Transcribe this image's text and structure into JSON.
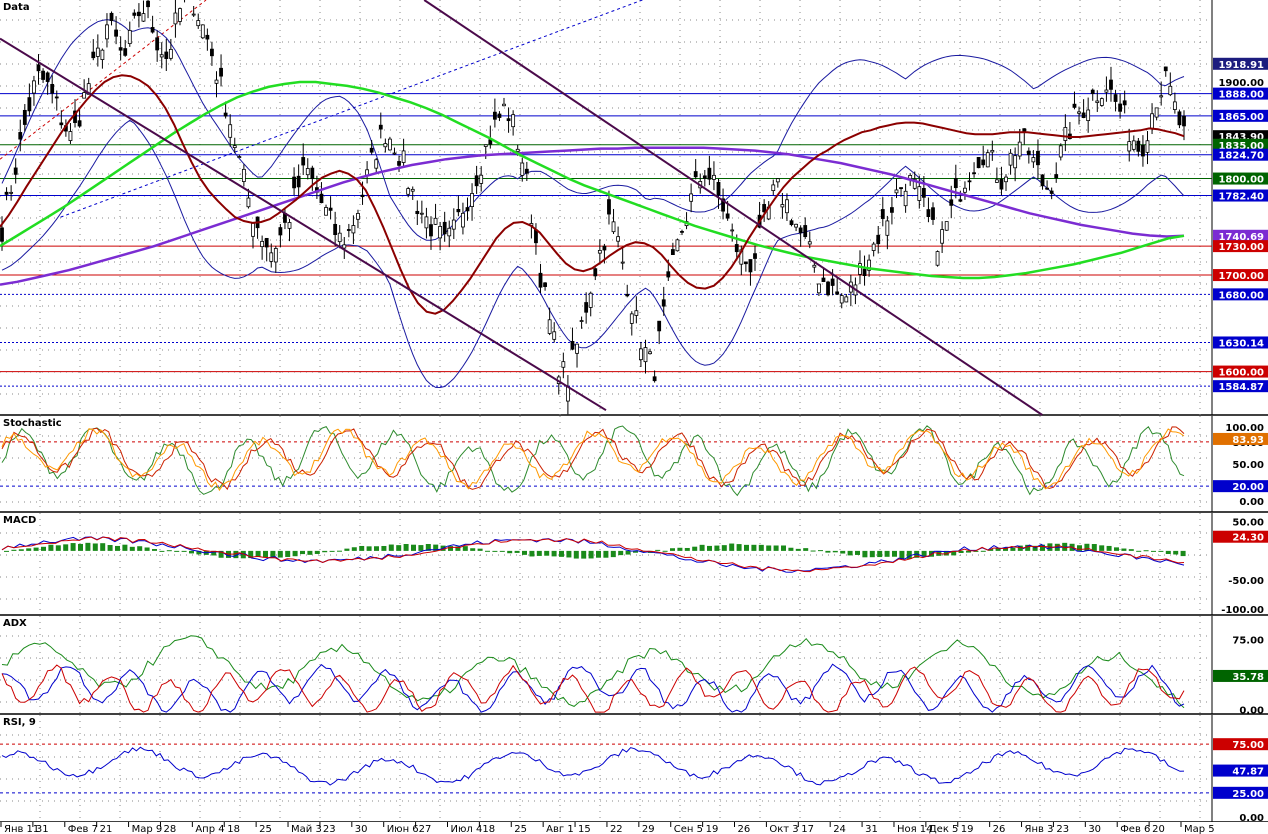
{
  "chart_data": [
    {
      "type": "candlestick",
      "panel": "main",
      "label": "Data",
      "scale_ticks": [
        {
          "label": "1918.91",
          "value": 1918.91,
          "kind": "price",
          "color": "#1c1c7e"
        },
        {
          "label": "1900.00",
          "value": 1900.0,
          "kind": "axis",
          "color": "#000000"
        },
        {
          "label": "1888.00",
          "value": 1888.0,
          "kind": "level",
          "color": "#0000cc"
        },
        {
          "label": "1865.00",
          "value": 1865.0,
          "kind": "level",
          "color": "#0000cc"
        },
        {
          "label": "1843.90",
          "value": 1843.9,
          "kind": "price",
          "color": "#000000"
        },
        {
          "label": "1835.00",
          "value": 1835.0,
          "kind": "level",
          "color": "#006400"
        },
        {
          "label": "1824.70",
          "value": 1824.7,
          "kind": "price",
          "color": "#0000cc"
        },
        {
          "label": "1800.00",
          "value": 1800.0,
          "kind": "level",
          "color": "#006400"
        },
        {
          "label": "1782.40",
          "value": 1782.4,
          "kind": "price",
          "color": "#0000cc"
        },
        {
          "label": "1740.69",
          "value": 1740.69,
          "kind": "price",
          "color": "#7b2cd2"
        },
        {
          "label": "1730.00",
          "value": 1730.0,
          "kind": "level",
          "color": "#cc0000"
        },
        {
          "label": "1700.00",
          "value": 1700.0,
          "kind": "level",
          "color": "#cc0000"
        },
        {
          "label": "1680.00",
          "value": 1680.0,
          "kind": "level",
          "color": "#0000cc"
        },
        {
          "label": "1630.14",
          "value": 1630.14,
          "kind": "price",
          "color": "#0000cc"
        },
        {
          "label": "1600.00",
          "value": 1600.0,
          "kind": "level",
          "color": "#cc0000"
        },
        {
          "label": "1584.87",
          "value": 1584.87,
          "kind": "price",
          "color": "#0000cc"
        }
      ],
      "horizontal_levels": [
        {
          "value": 1888,
          "color": "#0000cc"
        },
        {
          "value": 1865,
          "color": "#0000cc"
        },
        {
          "value": 1835,
          "color": "#006400"
        },
        {
          "value": 1824.7,
          "color": "#0000cc"
        },
        {
          "value": 1800,
          "color": "#006400"
        },
        {
          "value": 1782.4,
          "color": "#0000cc"
        },
        {
          "value": 1730,
          "color": "#cc0000"
        },
        {
          "value": 1700,
          "color": "#cc0000"
        },
        {
          "value": 1680,
          "color": "#0000cc",
          "dotted": true
        },
        {
          "value": 1630.14,
          "color": "#0000cc",
          "dotted": true
        },
        {
          "value": 1600,
          "color": "#cc0000"
        },
        {
          "value": 1584.87,
          "color": "#0000cc",
          "dotted": true
        }
      ],
      "close_series": [
        1750,
        1790,
        1830,
        1870,
        1905,
        1900,
        1880,
        1860,
        1840,
        1870,
        1900,
        1925,
        1960,
        1945,
        1920,
        1950,
        1980,
        1965,
        1940,
        1925,
        1960,
        1990,
        1985,
        1960,
        1935,
        1900,
        1870,
        1830,
        1790,
        1760,
        1740,
        1725,
        1740,
        1760,
        1790,
        1810,
        1790,
        1770,
        1750,
        1735,
        1745,
        1770,
        1800,
        1830,
        1850,
        1840,
        1820,
        1790,
        1770,
        1755,
        1745,
        1730,
        1745,
        1770,
        1790,
        1815,
        1840,
        1860,
        1875,
        1850,
        1815,
        1760,
        1700,
        1650,
        1610,
        1590,
        1620,
        1660,
        1700,
        1730,
        1760,
        1730,
        1690,
        1650,
        1620,
        1600,
        1650,
        1700,
        1740,
        1770,
        1795,
        1810,
        1790,
        1770,
        1740,
        1720,
        1710,
        1730,
        1760,
        1790,
        1780,
        1760,
        1740,
        1720,
        1700,
        1690,
        1680,
        1675,
        1690,
        1710,
        1725,
        1745,
        1765,
        1785,
        1800,
        1790,
        1770,
        1745,
        1735,
        1760,
        1785,
        1805,
        1820,
        1830,
        1815,
        1800,
        1820,
        1840,
        1830,
        1810,
        1790,
        1800,
        1830,
        1855,
        1870,
        1880,
        1890,
        1900,
        1880,
        1865,
        1845,
        1830,
        1860,
        1890,
        1900,
        1870,
        1843.9
      ],
      "sma_red": [
        1750,
        1762,
        1776,
        1791,
        1805,
        1819,
        1833,
        1847,
        1860,
        1871,
        1882,
        1892,
        1900,
        1905,
        1907,
        1906,
        1902,
        1896,
        1886,
        1873,
        1856,
        1836,
        1817,
        1800,
        1787,
        1777,
        1768,
        1760,
        1756,
        1754,
        1755,
        1758,
        1764,
        1771,
        1778,
        1786,
        1794,
        1801,
        1805,
        1808,
        1805,
        1799,
        1788,
        1770,
        1750,
        1728,
        1706,
        1686,
        1671,
        1662,
        1660,
        1664,
        1673,
        1684,
        1696,
        1710,
        1724,
        1738,
        1748,
        1754,
        1755,
        1751,
        1744,
        1733,
        1722,
        1712,
        1706,
        1704,
        1707,
        1713,
        1720,
        1726,
        1731,
        1734,
        1733,
        1729,
        1721,
        1710,
        1700,
        1692,
        1687,
        1686,
        1689,
        1697,
        1708,
        1722,
        1738,
        1752,
        1766,
        1779,
        1791,
        1801,
        1809,
        1817,
        1824,
        1829,
        1835,
        1840,
        1844,
        1848,
        1850,
        1853,
        1855,
        1857,
        1858,
        1858,
        1857,
        1855,
        1853,
        1851,
        1849,
        1847,
        1846,
        1846,
        1846,
        1847,
        1848,
        1848,
        1848,
        1847,
        1846,
        1845,
        1844,
        1843,
        1843,
        1844,
        1845,
        1846,
        1847,
        1848,
        1849,
        1850,
        1852,
        1851,
        1849,
        1847,
        1843.9
      ],
      "sma_green": [
        1730,
        1740,
        1750,
        1760,
        1770,
        1781,
        1792,
        1803,
        1814,
        1825,
        1836,
        1847,
        1857,
        1867,
        1876,
        1884,
        1890,
        1895,
        1898,
        1900,
        1900,
        1898,
        1896,
        1893,
        1889,
        1884,
        1879,
        1873,
        1866,
        1858,
        1850,
        1842,
        1833,
        1824,
        1816,
        1808,
        1800,
        1793,
        1787,
        1781,
        1775,
        1769,
        1763,
        1757,
        1751,
        1746,
        1741,
        1736,
        1731,
        1727,
        1723,
        1719,
        1716,
        1713,
        1710,
        1707,
        1705,
        1703,
        1701,
        1699,
        1698,
        1697,
        1697,
        1698,
        1700,
        1702,
        1705,
        1708,
        1711,
        1715,
        1719,
        1723,
        1728,
        1733,
        1738,
        1740.69
      ],
      "sma_purple": [
        1690,
        1693,
        1697,
        1701,
        1705,
        1710,
        1715,
        1720,
        1725,
        1730,
        1736,
        1742,
        1748,
        1754,
        1760,
        1766,
        1772,
        1778,
        1784,
        1790,
        1796,
        1801,
        1806,
        1810,
        1814,
        1817,
        1820,
        1822,
        1824,
        1825,
        1826,
        1827,
        1828,
        1829,
        1830,
        1831,
        1831,
        1832,
        1832,
        1832,
        1832,
        1832,
        1831,
        1830,
        1829,
        1827,
        1825,
        1822,
        1819,
        1816,
        1812,
        1808,
        1804,
        1799,
        1794,
        1789,
        1784,
        1779,
        1774,
        1769,
        1764,
        1760,
        1756,
        1752,
        1749,
        1746,
        1743,
        1741,
        1740,
        1740.69
      ],
      "channel_lines": [
        {
          "name": "",
          "color": "#4b0a4b",
          "points": [
            [
              0,
              1945
            ],
            [
              0.5,
              1560
            ]
          ]
        },
        {
          "name": "",
          "color": "#4b0a4b",
          "points": [
            [
              0.35,
              1985
            ],
            [
              0.86,
              1555
            ]
          ]
        }
      ],
      "trend_lines": [
        {
          "color": "#0000cc",
          "dashed": true,
          "points": [
            [
              0.05,
              1760
            ],
            [
              0.53,
              1985
            ]
          ]
        },
        {
          "color": "#cc0000",
          "dashed": true,
          "points": [
            [
              0.0,
              1820
            ],
            [
              0.17,
              1985
            ]
          ]
        }
      ]
    },
    {
      "type": "line",
      "panel": "stochastic",
      "label": "Stochastic",
      "ticks": [
        "100.00",
        "80.00",
        "50.00",
        "20.00",
        "0.00"
      ],
      "levels": [
        80,
        20
      ],
      "price_labels": [
        {
          "label": "83.93",
          "value": 83.93,
          "color": "#e07000"
        },
        {
          "label": "20.00",
          "value": 20.0,
          "color": "#0000cc"
        }
      ]
    },
    {
      "type": "bar",
      "panel": "macd",
      "label": "MACD",
      "ticks": [
        "50.00",
        "-50.00",
        "-100.00"
      ],
      "price_labels": [
        {
          "label": "24.30",
          "value": 24.3,
          "color": "#cc0000"
        }
      ]
    },
    {
      "type": "line",
      "panel": "adx",
      "label": "ADX",
      "ticks": [
        "75.00",
        "0.00"
      ],
      "price_labels": [
        {
          "label": "35.78",
          "value": 35.78,
          "color": "#006400"
        }
      ]
    },
    {
      "type": "line",
      "panel": "rsi",
      "label": "RSI, 9",
      "ticks": [
        "75.00",
        "47.87",
        "25.00",
        "0.00"
      ],
      "levels": [
        75,
        25
      ],
      "price_labels": [
        {
          "label": "75.00",
          "value": 75.0,
          "color": "#cc0000"
        },
        {
          "label": "47.87",
          "value": 47.87,
          "color": "#0000cc"
        },
        {
          "label": "25.00",
          "value": 25.0,
          "color": "#0000cc"
        }
      ]
    }
  ],
  "time_axis": {
    "labels": [
      "Янв 11",
      "31",
      "Фев 7",
      "21",
      "Мар 9",
      "28",
      "Апр 4",
      "18",
      "25",
      "Май 3",
      "23",
      "30",
      "Июн 6",
      "27",
      "Июл 4",
      "18",
      "25",
      "Авг 1",
      "15",
      "22",
      "29",
      "Сен 5",
      "19",
      "26",
      "Окт 3",
      "17",
      "24",
      "31",
      "Ноя 14",
      "Дек 5",
      "19",
      "26",
      "Янв 3",
      "23",
      "30",
      "Фев 6",
      "20",
      "Мар 5"
    ]
  }
}
